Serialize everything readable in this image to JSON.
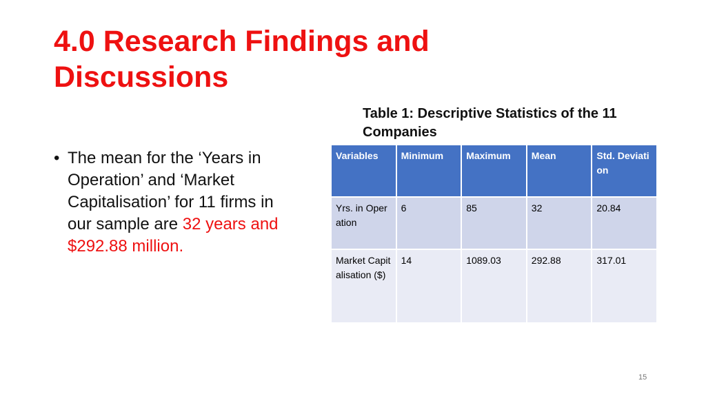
{
  "title": "4.0 Research Findings and Discussions",
  "bullet": {
    "text": "The mean for the ‘Years in Operation’ and ‘Market Capitalisation’ for 11 firms in our sample are",
    "highlight": "32 years and $292.88 million."
  },
  "table": {
    "caption": "Table 1: Descriptive Statistics of the 11 Companies",
    "header": [
      "Variables",
      "Minimum",
      "Maximum",
      "Mean",
      "Std. Deviation"
    ],
    "rows": [
      [
        "Yrs. in Operation",
        "6",
        "85",
        "32",
        "20.84"
      ],
      [
        "Market Capitalisation ($)",
        "14",
        "1089.03",
        "292.88",
        "317.01"
      ]
    ]
  },
  "page_number": "15"
}
